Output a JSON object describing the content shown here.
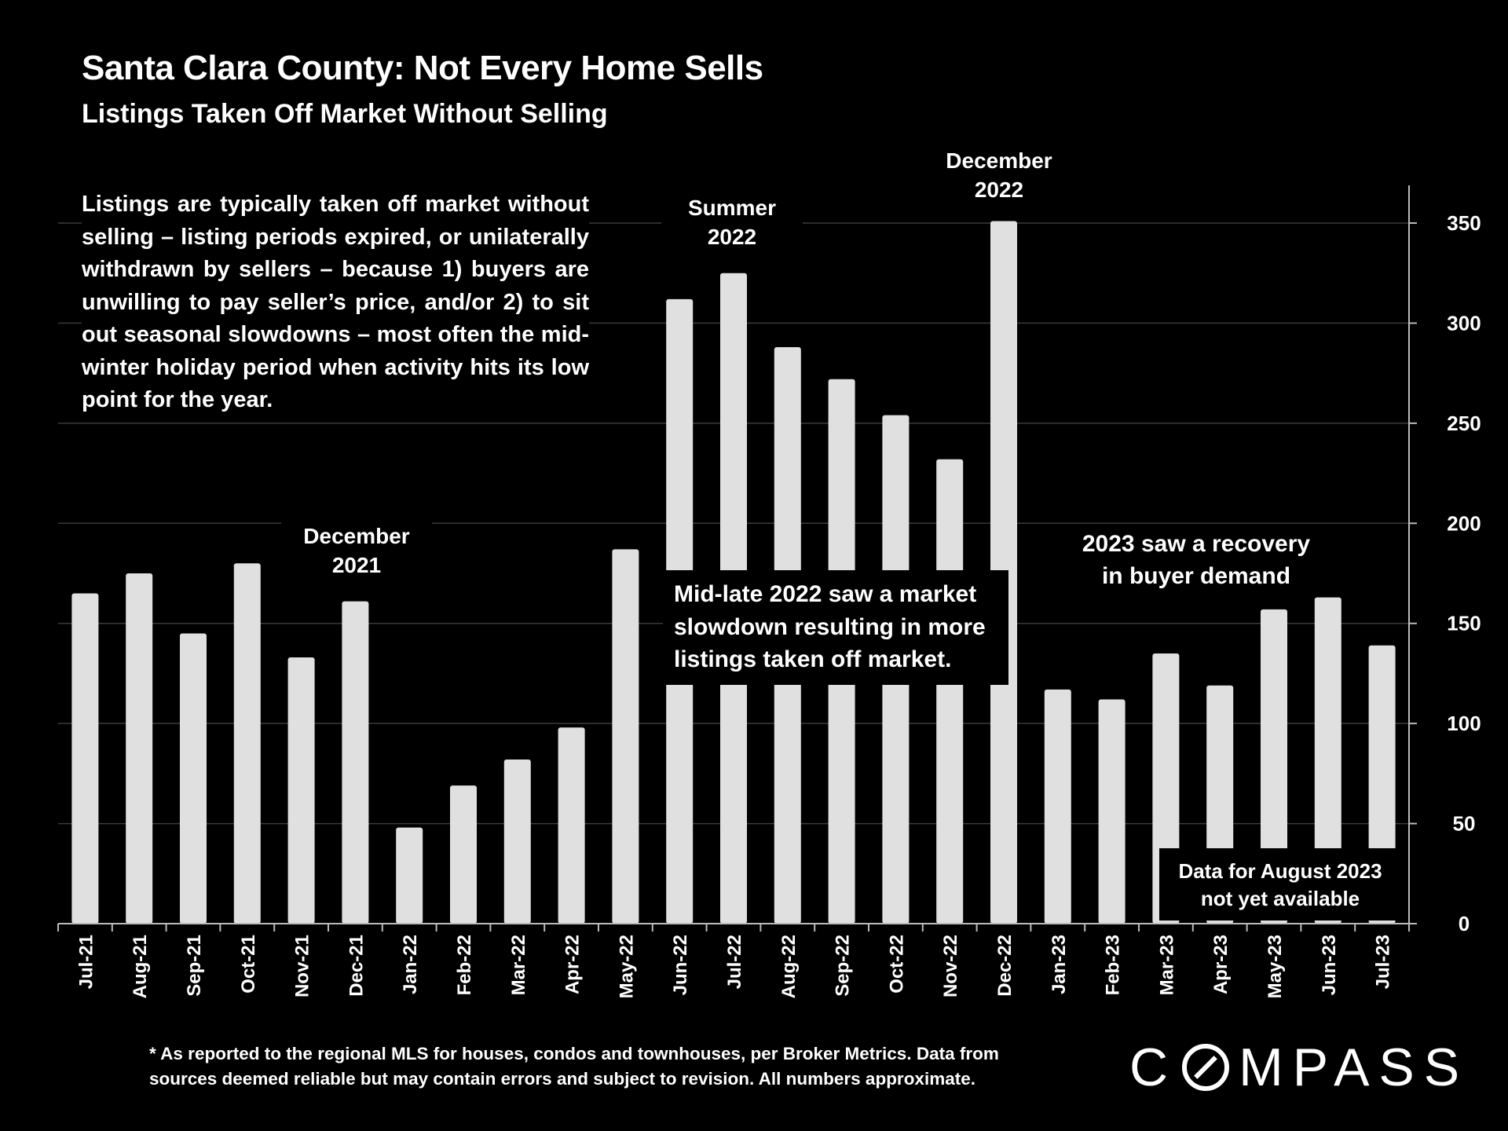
{
  "header": {
    "title": "Santa Clara County: Not Every Home Sells",
    "subtitle": "Listings Taken Off Market Without Selling"
  },
  "description": "Listings are typically taken off market without selling – listing periods expired, or unilaterally withdrawn by sellers – because 1) buyers are unwilling to pay seller’s price, and/or 2) to sit out seasonal slowdowns – most often the mid-winter holiday period when activity hits its low point for the year.",
  "annotations": {
    "dec_2021_line1": "December",
    "dec_2021_line2": "2021",
    "summer_2022_line1": "Summer",
    "summer_2022_line2": "2022",
    "dec_2022_line1": "December",
    "dec_2022_line2": "2022",
    "slowdown": "Mid-late 2022 saw a market slowdown resulting in more listings taken off market.",
    "recovery_line1": "2023 saw a recovery",
    "recovery_line2": "in buyer demand",
    "august_line1": "Data for August 2023",
    "august_line2": "not yet available"
  },
  "footnote_line1": "* As reported to the regional MLS for houses, condos and townhouses, per Broker Metrics. Data from",
  "footnote_line2": "sources deemed reliable but may contain errors and subject to revision. All numbers approximate.",
  "brand": {
    "logo_text": "COMPASS"
  },
  "colors": {
    "background": "#000000",
    "bar": "#e0e0e0",
    "grid": "#3a3a3a",
    "text": "#ffffff"
  },
  "chart_data": {
    "type": "bar",
    "title": "Santa Clara County: Not Every Home Sells",
    "subtitle": "Listings Taken Off Market Without Selling",
    "categories": [
      "Jul-21",
      "Aug-21",
      "Sep-21",
      "Oct-21",
      "Nov-21",
      "Dec-21",
      "Jan-22",
      "Feb-22",
      "Mar-22",
      "Apr-22",
      "May-22",
      "Jun-22",
      "Jul-22",
      "Aug-22",
      "Sep-22",
      "Oct-22",
      "Nov-22",
      "Dec-22",
      "Jan-23",
      "Feb-23",
      "Mar-23",
      "Apr-23",
      "May-23",
      "Jun-23",
      "Jul-23"
    ],
    "values": [
      165,
      175,
      145,
      180,
      133,
      161,
      48,
      69,
      82,
      98,
      187,
      312,
      325,
      288,
      272,
      254,
      232,
      351,
      117,
      112,
      135,
      119,
      157,
      163,
      139
    ],
    "ylim": [
      0,
      350
    ],
    "yticks": [
      0,
      50,
      100,
      150,
      200,
      250,
      300,
      350
    ],
    "y_axis_side": "right",
    "grid": true,
    "xlabel": "",
    "ylabel": ""
  }
}
